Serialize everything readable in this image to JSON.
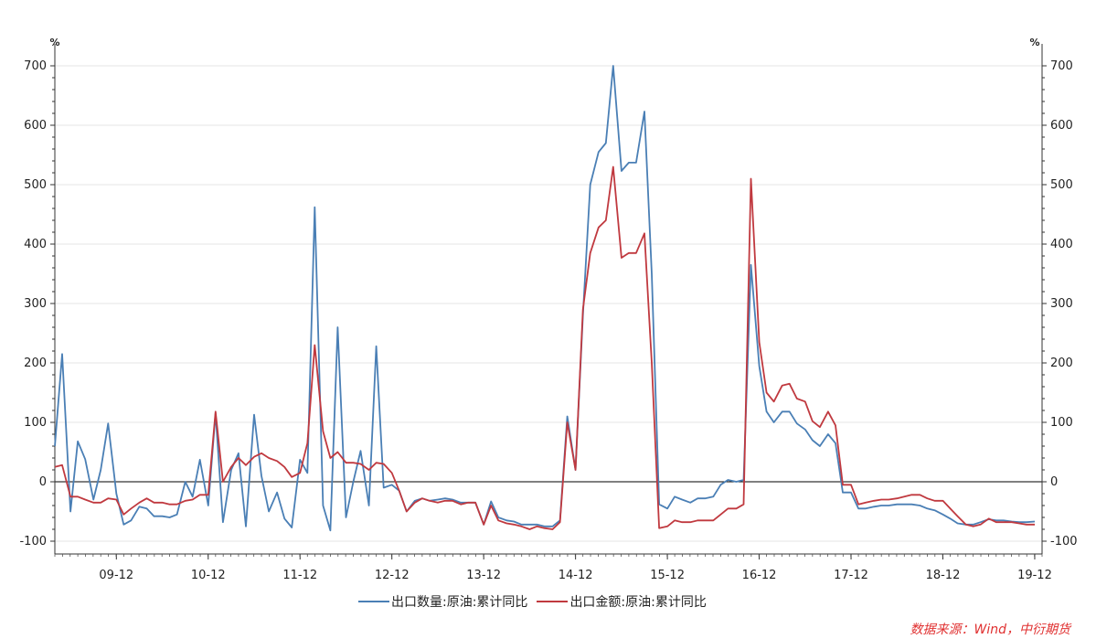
{
  "chart_data": {
    "type": "line",
    "title": "",
    "y_unit_left": "%",
    "y_unit_right": "%",
    "ylim": [
      -100,
      700
    ],
    "yticks": [
      -100,
      0,
      100,
      200,
      300,
      400,
      500,
      600,
      700
    ],
    "xlim": [
      2009.0,
      2019.75
    ],
    "x_ticks": [
      {
        "x": 2009.67,
        "label": "09-12"
      },
      {
        "x": 2010.67,
        "label": "10-12"
      },
      {
        "x": 2011.67,
        "label": "11-12"
      },
      {
        "x": 2012.67,
        "label": "12-12"
      },
      {
        "x": 2013.67,
        "label": "13-12"
      },
      {
        "x": 2014.67,
        "label": "14-12"
      },
      {
        "x": 2015.67,
        "label": "15-12"
      },
      {
        "x": 2016.67,
        "label": "16-12"
      },
      {
        "x": 2017.67,
        "label": "17-12"
      },
      {
        "x": 2018.67,
        "label": "18-12"
      },
      {
        "x": 2019.67,
        "label": "19-12"
      }
    ],
    "zero_line": true,
    "legend_position": "bottom",
    "series": [
      {
        "name": "出口数量:原油:累计同比",
        "color": "#4a7fb5",
        "points": [
          [
            2009.0,
            60
          ],
          [
            2009.08,
            215
          ],
          [
            2009.17,
            -50
          ],
          [
            2009.25,
            68
          ],
          [
            2009.33,
            38
          ],
          [
            2009.42,
            -30
          ],
          [
            2009.5,
            20
          ],
          [
            2009.58,
            98
          ],
          [
            2009.67,
            -20
          ],
          [
            2009.75,
            -72
          ],
          [
            2009.83,
            -65
          ],
          [
            2009.92,
            -42
          ],
          [
            2010.0,
            -45
          ],
          [
            2010.08,
            -58
          ],
          [
            2010.17,
            -58
          ],
          [
            2010.25,
            -60
          ],
          [
            2010.33,
            -55
          ],
          [
            2010.42,
            0
          ],
          [
            2010.5,
            -25
          ],
          [
            2010.58,
            37
          ],
          [
            2010.67,
            -40
          ],
          [
            2010.75,
            115
          ],
          [
            2010.83,
            -68
          ],
          [
            2010.92,
            20
          ],
          [
            2011.0,
            48
          ],
          [
            2011.08,
            -75
          ],
          [
            2011.17,
            113
          ],
          [
            2011.25,
            10
          ],
          [
            2011.33,
            -50
          ],
          [
            2011.42,
            -18
          ],
          [
            2011.5,
            -62
          ],
          [
            2011.58,
            -77
          ],
          [
            2011.67,
            37
          ],
          [
            2011.75,
            15
          ],
          [
            2011.83,
            462
          ],
          [
            2011.92,
            -40
          ],
          [
            2012.0,
            -82
          ],
          [
            2012.08,
            260
          ],
          [
            2012.17,
            -60
          ],
          [
            2012.25,
            0
          ],
          [
            2012.33,
            52
          ],
          [
            2012.42,
            -40
          ],
          [
            2012.5,
            228
          ],
          [
            2012.58,
            -10
          ],
          [
            2012.67,
            -5
          ],
          [
            2012.75,
            -15
          ],
          [
            2012.83,
            -50
          ],
          [
            2012.92,
            -32
          ],
          [
            2013.0,
            -28
          ],
          [
            2013.08,
            -32
          ],
          [
            2013.17,
            -30
          ],
          [
            2013.25,
            -28
          ],
          [
            2013.33,
            -30
          ],
          [
            2013.42,
            -35
          ],
          [
            2013.5,
            -35
          ],
          [
            2013.58,
            -35
          ],
          [
            2013.67,
            -72
          ],
          [
            2013.75,
            -33
          ],
          [
            2013.83,
            -60
          ],
          [
            2013.92,
            -65
          ],
          [
            2014.0,
            -67
          ],
          [
            2014.08,
            -72
          ],
          [
            2014.17,
            -72
          ],
          [
            2014.25,
            -72
          ],
          [
            2014.33,
            -75
          ],
          [
            2014.42,
            -75
          ],
          [
            2014.5,
            -65
          ],
          [
            2014.58,
            110
          ],
          [
            2014.67,
            20
          ],
          [
            2014.75,
            280
          ],
          [
            2014.83,
            500
          ],
          [
            2014.92,
            555
          ],
          [
            2015.0,
            570
          ],
          [
            2015.08,
            700
          ],
          [
            2015.17,
            523
          ],
          [
            2015.25,
            537
          ],
          [
            2015.33,
            537
          ],
          [
            2015.42,
            623
          ],
          [
            2015.5,
            350
          ],
          [
            2015.58,
            -38
          ],
          [
            2015.67,
            -45
          ],
          [
            2015.75,
            -25
          ],
          [
            2015.83,
            -30
          ],
          [
            2015.92,
            -35
          ],
          [
            2016.0,
            -28
          ],
          [
            2016.08,
            -28
          ],
          [
            2016.17,
            -25
          ],
          [
            2016.25,
            -5
          ],
          [
            2016.33,
            3
          ],
          [
            2016.42,
            0
          ],
          [
            2016.5,
            3
          ],
          [
            2016.58,
            365
          ],
          [
            2016.67,
            195
          ],
          [
            2016.75,
            118
          ],
          [
            2016.83,
            100
          ],
          [
            2016.92,
            118
          ],
          [
            2017.0,
            118
          ],
          [
            2017.08,
            98
          ],
          [
            2017.17,
            88
          ],
          [
            2017.25,
            70
          ],
          [
            2017.33,
            60
          ],
          [
            2017.42,
            80
          ],
          [
            2017.5,
            65
          ],
          [
            2017.58,
            -18
          ],
          [
            2017.67,
            -18
          ],
          [
            2017.75,
            -45
          ],
          [
            2017.83,
            -45
          ],
          [
            2017.92,
            -42
          ],
          [
            2018.0,
            -40
          ],
          [
            2018.08,
            -40
          ],
          [
            2018.17,
            -38
          ],
          [
            2018.25,
            -38
          ],
          [
            2018.33,
            -38
          ],
          [
            2018.42,
            -40
          ],
          [
            2018.5,
            -45
          ],
          [
            2018.58,
            -48
          ],
          [
            2018.67,
            -55
          ],
          [
            2018.75,
            -62
          ],
          [
            2018.83,
            -70
          ],
          [
            2018.92,
            -72
          ],
          [
            2019.0,
            -72
          ],
          [
            2019.08,
            -68
          ],
          [
            2019.17,
            -63
          ],
          [
            2019.25,
            -65
          ],
          [
            2019.33,
            -65
          ],
          [
            2019.42,
            -67
          ],
          [
            2019.5,
            -68
          ],
          [
            2019.58,
            -68
          ],
          [
            2019.67,
            -67
          ]
        ]
      },
      {
        "name": "出口金额:原油:累计同比",
        "color": "#c0393f",
        "points": [
          [
            2009.0,
            25
          ],
          [
            2009.08,
            28
          ],
          [
            2009.17,
            -25
          ],
          [
            2009.25,
            -25
          ],
          [
            2009.33,
            -30
          ],
          [
            2009.42,
            -35
          ],
          [
            2009.5,
            -35
          ],
          [
            2009.58,
            -28
          ],
          [
            2009.67,
            -30
          ],
          [
            2009.75,
            -55
          ],
          [
            2009.83,
            -45
          ],
          [
            2009.92,
            -35
          ],
          [
            2010.0,
            -28
          ],
          [
            2010.08,
            -35
          ],
          [
            2010.17,
            -35
          ],
          [
            2010.25,
            -38
          ],
          [
            2010.33,
            -38
          ],
          [
            2010.42,
            -32
          ],
          [
            2010.5,
            -30
          ],
          [
            2010.58,
            -22
          ],
          [
            2010.67,
            -22
          ],
          [
            2010.75,
            118
          ],
          [
            2010.83,
            0
          ],
          [
            2010.92,
            25
          ],
          [
            2011.0,
            40
          ],
          [
            2011.08,
            28
          ],
          [
            2011.17,
            42
          ],
          [
            2011.25,
            48
          ],
          [
            2011.33,
            40
          ],
          [
            2011.42,
            35
          ],
          [
            2011.5,
            25
          ],
          [
            2011.58,
            8
          ],
          [
            2011.67,
            15
          ],
          [
            2011.75,
            65
          ],
          [
            2011.83,
            230
          ],
          [
            2011.92,
            85
          ],
          [
            2012.0,
            40
          ],
          [
            2012.08,
            50
          ],
          [
            2012.17,
            32
          ],
          [
            2012.25,
            32
          ],
          [
            2012.33,
            30
          ],
          [
            2012.42,
            20
          ],
          [
            2012.5,
            32
          ],
          [
            2012.58,
            30
          ],
          [
            2012.67,
            15
          ],
          [
            2012.75,
            -15
          ],
          [
            2012.83,
            -50
          ],
          [
            2012.92,
            -35
          ],
          [
            2013.0,
            -28
          ],
          [
            2013.08,
            -32
          ],
          [
            2013.17,
            -35
          ],
          [
            2013.25,
            -32
          ],
          [
            2013.33,
            -32
          ],
          [
            2013.42,
            -38
          ],
          [
            2013.5,
            -35
          ],
          [
            2013.58,
            -35
          ],
          [
            2013.67,
            -72
          ],
          [
            2013.75,
            -40
          ],
          [
            2013.83,
            -65
          ],
          [
            2013.92,
            -70
          ],
          [
            2014.0,
            -72
          ],
          [
            2014.08,
            -75
          ],
          [
            2014.17,
            -80
          ],
          [
            2014.25,
            -75
          ],
          [
            2014.33,
            -78
          ],
          [
            2014.42,
            -80
          ],
          [
            2014.5,
            -68
          ],
          [
            2014.58,
            100
          ],
          [
            2014.67,
            20
          ],
          [
            2014.75,
            290
          ],
          [
            2014.83,
            385
          ],
          [
            2014.92,
            428
          ],
          [
            2015.0,
            440
          ],
          [
            2015.08,
            530
          ],
          [
            2015.17,
            377
          ],
          [
            2015.25,
            385
          ],
          [
            2015.33,
            385
          ],
          [
            2015.42,
            418
          ],
          [
            2015.5,
            200
          ],
          [
            2015.58,
            -78
          ],
          [
            2015.67,
            -75
          ],
          [
            2015.75,
            -65
          ],
          [
            2015.83,
            -68
          ],
          [
            2015.92,
            -68
          ],
          [
            2016.0,
            -65
          ],
          [
            2016.08,
            -65
          ],
          [
            2016.17,
            -65
          ],
          [
            2016.25,
            -55
          ],
          [
            2016.33,
            -45
          ],
          [
            2016.42,
            -45
          ],
          [
            2016.5,
            -38
          ],
          [
            2016.58,
            510
          ],
          [
            2016.67,
            235
          ],
          [
            2016.75,
            150
          ],
          [
            2016.83,
            135
          ],
          [
            2016.92,
            162
          ],
          [
            2017.0,
            165
          ],
          [
            2017.08,
            140
          ],
          [
            2017.17,
            135
          ],
          [
            2017.25,
            102
          ],
          [
            2017.33,
            92
          ],
          [
            2017.42,
            118
          ],
          [
            2017.5,
            95
          ],
          [
            2017.58,
            -5
          ],
          [
            2017.67,
            -5
          ],
          [
            2017.75,
            -38
          ],
          [
            2017.83,
            -35
          ],
          [
            2017.92,
            -32
          ],
          [
            2018.0,
            -30
          ],
          [
            2018.08,
            -30
          ],
          [
            2018.17,
            -28
          ],
          [
            2018.25,
            -25
          ],
          [
            2018.33,
            -22
          ],
          [
            2018.42,
            -22
          ],
          [
            2018.5,
            -28
          ],
          [
            2018.58,
            -32
          ],
          [
            2018.67,
            -32
          ],
          [
            2018.75,
            -45
          ],
          [
            2018.83,
            -58
          ],
          [
            2018.92,
            -72
          ],
          [
            2019.0,
            -75
          ],
          [
            2019.08,
            -72
          ],
          [
            2019.17,
            -62
          ],
          [
            2019.25,
            -68
          ],
          [
            2019.33,
            -68
          ],
          [
            2019.42,
            -68
          ],
          [
            2019.5,
            -70
          ],
          [
            2019.58,
            -72
          ],
          [
            2019.67,
            -72
          ]
        ]
      }
    ]
  },
  "legend": {
    "item1": "出口数量:原油:累计同比",
    "item2": "出口金额:原油:累计同比"
  },
  "source": "数据来源：Wind，中衍期货"
}
